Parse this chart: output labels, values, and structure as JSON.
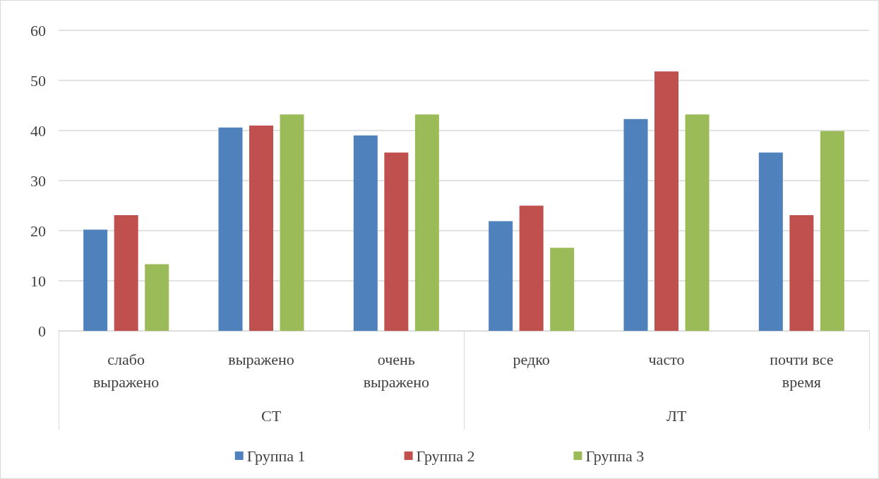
{
  "chart_data": {
    "type": "bar",
    "categories": [
      "слабо\nвыражено",
      "выражено",
      "очень\nвыражено",
      "редко",
      "часто",
      "почти все\nвремя"
    ],
    "series": [
      {
        "name": "Группа 1",
        "color": "#4f81bd",
        "values": [
          20.2,
          40.6,
          39.0,
          21.9,
          42.3,
          35.6
        ]
      },
      {
        "name": "Группа 2",
        "color": "#c0504d",
        "values": [
          23.1,
          41.0,
          35.6,
          25.0,
          51.8,
          23.1
        ]
      },
      {
        "name": "Группа 3",
        "color": "#9bbb59",
        "values": [
          13.3,
          43.2,
          43.2,
          16.6,
          43.2,
          39.9
        ]
      }
    ],
    "annotations": [
      "СТ",
      "ЛТ"
    ],
    "ylim": [
      0,
      60
    ],
    "yticks": [
      0,
      10,
      20,
      30,
      40,
      50,
      60
    ],
    "grid": "y",
    "legend": "bottom"
  }
}
